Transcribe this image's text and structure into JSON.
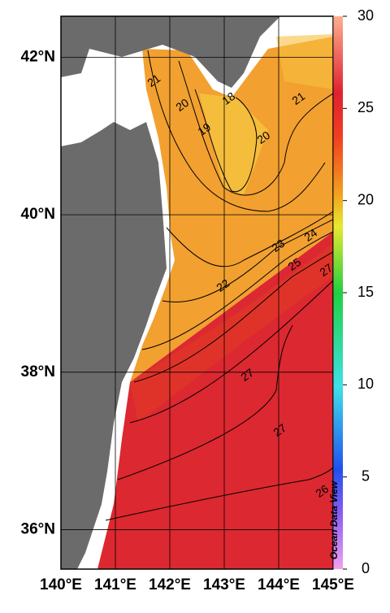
{
  "map": {
    "lon_lim": [
      140,
      145
    ],
    "lat_lim": [
      35.5,
      42.52
    ],
    "lon_ticks": [
      {
        "value": 140,
        "label": "140°E"
      },
      {
        "value": 141,
        "label": "141°E"
      },
      {
        "value": 142,
        "label": "142°E"
      },
      {
        "value": 143,
        "label": "143°E"
      },
      {
        "value": 144,
        "label": "144°E"
      },
      {
        "value": 145,
        "label": "145°E"
      }
    ],
    "lat_ticks": [
      {
        "value": 36,
        "label": "36°N"
      },
      {
        "value": 38,
        "label": "38°N"
      },
      {
        "value": 40,
        "label": "40°N"
      },
      {
        "value": 42,
        "label": "42°N"
      }
    ],
    "contour_labels": [
      21,
      20,
      19,
      18,
      20,
      21,
      22,
      23,
      24,
      25,
      27,
      27,
      27,
      26
    ],
    "watermark": "Ocean Data View"
  },
  "colorbar": {
    "lim": [
      0,
      30
    ],
    "ticks": [
      0,
      5,
      10,
      15,
      20,
      25,
      30
    ]
  }
}
